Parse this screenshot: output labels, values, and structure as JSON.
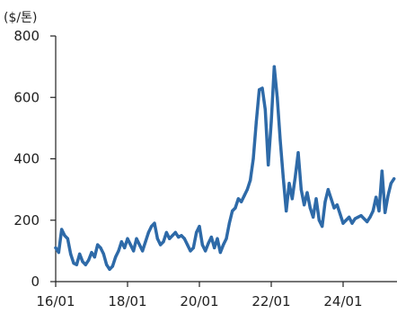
{
  "chart_data": {
    "type": "line",
    "title": "",
    "unit_label": "($/톤)",
    "xlabel": "",
    "ylabel": "",
    "ylim": [
      0,
      800
    ],
    "yticks": [
      0,
      200,
      400,
      600,
      800
    ],
    "xlim": [
      "2016-01",
      "2025-07"
    ],
    "xticks": [
      {
        "x": "2016-01",
        "label": "16/01"
      },
      {
        "x": "2018-01",
        "label": "18/01"
      },
      {
        "x": "2020-01",
        "label": "20/01"
      },
      {
        "x": "2022-01",
        "label": "22/01"
      },
      {
        "x": "2024-01",
        "label": "24/01"
      }
    ],
    "grid": false,
    "legend": "none",
    "color": "#2e6aa8",
    "series": [
      {
        "points": [
          [
            "2016-01",
            110
          ],
          [
            "2016-02",
            95
          ],
          [
            "2016-03",
            170
          ],
          [
            "2016-04",
            150
          ],
          [
            "2016-05",
            140
          ],
          [
            "2016-06",
            90
          ],
          [
            "2016-07",
            60
          ],
          [
            "2016-08",
            55
          ],
          [
            "2016-09",
            90
          ],
          [
            "2016-10",
            65
          ],
          [
            "2016-11",
            55
          ],
          [
            "2016-12",
            70
          ],
          [
            "2017-01",
            95
          ],
          [
            "2017-02",
            80
          ],
          [
            "2017-03",
            120
          ],
          [
            "2017-04",
            110
          ],
          [
            "2017-05",
            90
          ],
          [
            "2017-06",
            55
          ],
          [
            "2017-07",
            40
          ],
          [
            "2017-08",
            50
          ],
          [
            "2017-09",
            80
          ],
          [
            "2017-10",
            100
          ],
          [
            "2017-11",
            130
          ],
          [
            "2017-12",
            110
          ],
          [
            "2018-01",
            140
          ],
          [
            "2018-02",
            120
          ],
          [
            "2018-03",
            100
          ],
          [
            "2018-04",
            140
          ],
          [
            "2018-05",
            120
          ],
          [
            "2018-06",
            100
          ],
          [
            "2018-07",
            130
          ],
          [
            "2018-08",
            160
          ],
          [
            "2018-09",
            180
          ],
          [
            "2018-10",
            190
          ],
          [
            "2018-11",
            140
          ],
          [
            "2018-12",
            120
          ],
          [
            "2019-01",
            130
          ],
          [
            "2019-02",
            160
          ],
          [
            "2019-03",
            140
          ],
          [
            "2019-04",
            150
          ],
          [
            "2019-05",
            160
          ],
          [
            "2019-06",
            145
          ],
          [
            "2019-07",
            150
          ],
          [
            "2019-08",
            140
          ],
          [
            "2019-09",
            120
          ],
          [
            "2019-10",
            100
          ],
          [
            "2019-11",
            110
          ],
          [
            "2019-12",
            160
          ],
          [
            "2020-01",
            180
          ],
          [
            "2020-02",
            120
          ],
          [
            "2020-03",
            100
          ],
          [
            "2020-04",
            125
          ],
          [
            "2020-05",
            145
          ],
          [
            "2020-06",
            110
          ],
          [
            "2020-07",
            140
          ],
          [
            "2020-08",
            95
          ],
          [
            "2020-09",
            120
          ],
          [
            "2020-10",
            140
          ],
          [
            "2020-11",
            190
          ],
          [
            "2020-12",
            230
          ],
          [
            "2021-01",
            240
          ],
          [
            "2021-02",
            270
          ],
          [
            "2021-03",
            260
          ],
          [
            "2021-04",
            280
          ],
          [
            "2021-05",
            300
          ],
          [
            "2021-06",
            330
          ],
          [
            "2021-07",
            400
          ],
          [
            "2021-08",
            520
          ],
          [
            "2021-09",
            625
          ],
          [
            "2021-10",
            630
          ],
          [
            "2021-11",
            560
          ],
          [
            "2021-12",
            380
          ],
          [
            "2022-01",
            520
          ],
          [
            "2022-02",
            700
          ],
          [
            "2022-03",
            600
          ],
          [
            "2022-04",
            460
          ],
          [
            "2022-05",
            340
          ],
          [
            "2022-06",
            230
          ],
          [
            "2022-07",
            320
          ],
          [
            "2022-08",
            270
          ],
          [
            "2022-09",
            340
          ],
          [
            "2022-10",
            420
          ],
          [
            "2022-11",
            300
          ],
          [
            "2022-12",
            250
          ],
          [
            "2023-01",
            290
          ],
          [
            "2023-02",
            240
          ],
          [
            "2023-03",
            210
          ],
          [
            "2023-04",
            270
          ],
          [
            "2023-05",
            200
          ],
          [
            "2023-06",
            180
          ],
          [
            "2023-07",
            260
          ],
          [
            "2023-08",
            300
          ],
          [
            "2023-09",
            270
          ],
          [
            "2023-10",
            240
          ],
          [
            "2023-11",
            250
          ],
          [
            "2023-12",
            220
          ],
          [
            "2024-01",
            190
          ],
          [
            "2024-02",
            200
          ],
          [
            "2024-03",
            210
          ],
          [
            "2024-04",
            190
          ],
          [
            "2024-05",
            205
          ],
          [
            "2024-06",
            210
          ],
          [
            "2024-07",
            215
          ],
          [
            "2024-08",
            205
          ],
          [
            "2024-09",
            195
          ],
          [
            "2024-10",
            210
          ],
          [
            "2024-11",
            230
          ],
          [
            "2024-12",
            275
          ],
          [
            "2025-01",
            230
          ],
          [
            "2025-02",
            360
          ],
          [
            "2025-03",
            225
          ],
          [
            "2025-04",
            280
          ],
          [
            "2025-05",
            320
          ],
          [
            "2025-06",
            335
          ]
        ]
      }
    ]
  }
}
